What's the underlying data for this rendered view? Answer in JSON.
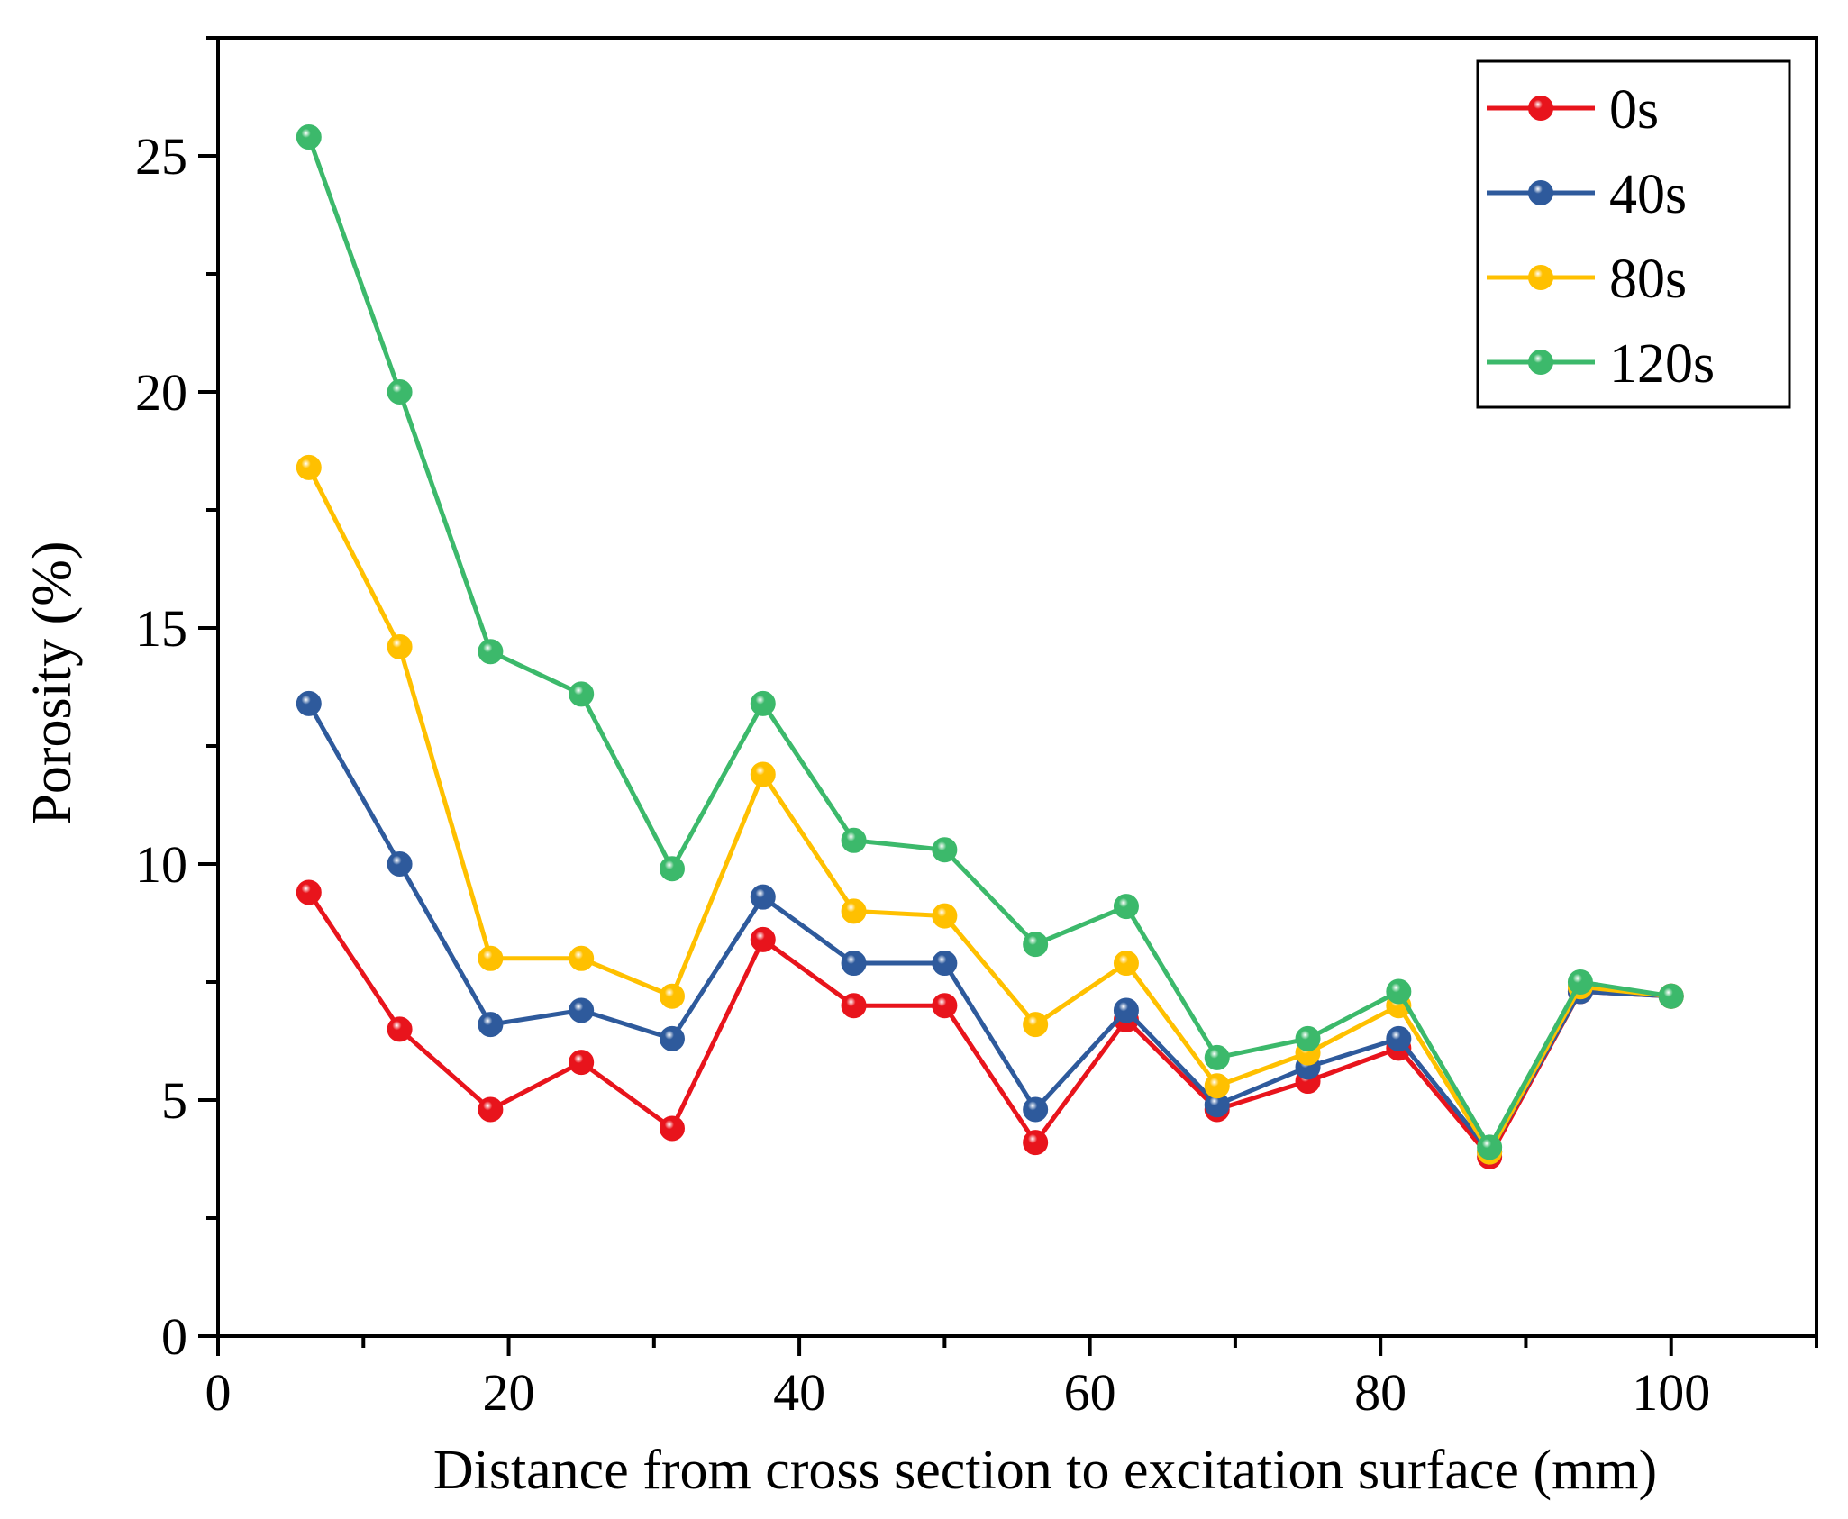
{
  "chart_data": {
    "type": "line",
    "title": "",
    "xlabel": "Distance from  cross section to excitation surface (mm)",
    "ylabel": "Porosity (%)",
    "xlim": [
      0,
      110
    ],
    "ylim": [
      0,
      27.5
    ],
    "xticks": [
      0,
      20,
      40,
      60,
      80,
      100
    ],
    "yticks": [
      0,
      5,
      10,
      15,
      20,
      25
    ],
    "x": [
      6.25,
      12.5,
      18.75,
      25,
      31.25,
      37.5,
      43.75,
      50,
      56.25,
      62.5,
      68.75,
      75,
      81.25,
      87.5,
      93.75,
      100
    ],
    "legend_position": "top-right",
    "grid": false,
    "series": [
      {
        "name": "0s",
        "color": "#e8141c",
        "values": [
          9.4,
          6.5,
          4.8,
          5.8,
          4.4,
          8.4,
          7.0,
          7.0,
          4.1,
          6.7,
          4.8,
          5.4,
          6.1,
          3.8,
          7.3,
          7.2
        ]
      },
      {
        "name": "40s",
        "color": "#2e5a9c",
        "values": [
          13.4,
          10.0,
          6.6,
          6.9,
          6.3,
          9.3,
          7.9,
          7.9,
          4.8,
          6.9,
          4.9,
          5.7,
          6.3,
          3.9,
          7.3,
          7.2
        ]
      },
      {
        "name": "80s",
        "color": "#ffc000",
        "values": [
          18.4,
          14.6,
          8.0,
          8.0,
          7.2,
          11.9,
          9.0,
          8.9,
          6.6,
          7.9,
          5.3,
          6.0,
          7.0,
          3.9,
          7.4,
          7.2
        ]
      },
      {
        "name": "120s",
        "color": "#3cb96b",
        "values": [
          25.4,
          20.0,
          14.5,
          13.6,
          9.9,
          13.4,
          10.5,
          10.3,
          8.3,
          9.1,
          5.9,
          6.3,
          7.3,
          4.0,
          7.5,
          7.2
        ]
      }
    ]
  }
}
